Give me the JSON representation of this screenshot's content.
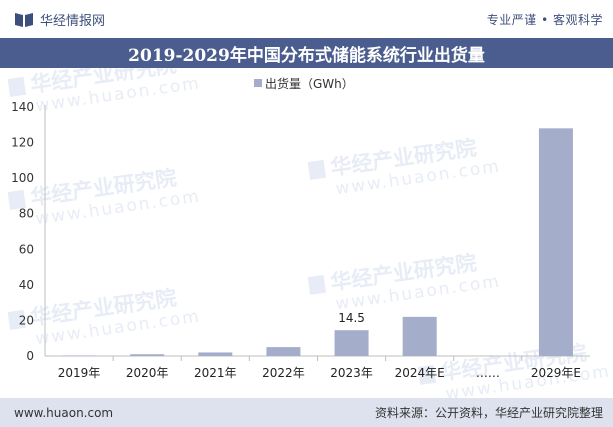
{
  "header": {
    "brand": "华经情报网",
    "slogan": "专业严谨 • 客观科学"
  },
  "title": "2019-2029年中国分布式储能系统行业出货量",
  "footer": {
    "website": "www.huaon.com",
    "source": "资料来源：公开资料，华经产业研究院整理"
  },
  "watermark": {
    "name": "华经产业研究院",
    "url": "www.huaon.com"
  },
  "colors": {
    "bar": "#a4adc9",
    "title_bg": "#4a5d8e",
    "brand": "#3d4f7c",
    "footer_bg": "#dde2ee"
  },
  "icons": {
    "brand": "book-logo-icon"
  },
  "chart_data": {
    "type": "bar",
    "categories": [
      "2019年",
      "2020年",
      "2021年",
      "2022年",
      "2023年",
      "2024年E",
      "……",
      "2029年E"
    ],
    "series": [
      {
        "name": "出货量（GWh）",
        "values": [
          0.3,
          1.0,
          2.0,
          5.0,
          14.5,
          22.0,
          null,
          128.0
        ]
      }
    ],
    "data_labels": [
      "",
      "",
      "",
      "",
      "14.5",
      "",
      "",
      ""
    ],
    "ylim": [
      0,
      140
    ],
    "yticks": [
      "0",
      "20",
      "40",
      "60",
      "80",
      "100",
      "120",
      "140"
    ],
    "legend_position": "top-center",
    "grid": false
  }
}
